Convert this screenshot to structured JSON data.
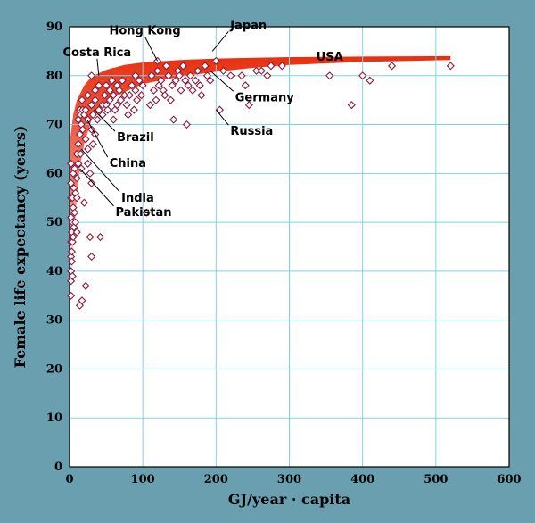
{
  "colors": {
    "frame": "#6a9fb0",
    "plot_bg": "#ffffff",
    "grid": "#7ed3e8",
    "band_top": "#e83010",
    "band_bottom": "#ffffff",
    "marker_edge": "#8b1a3a"
  },
  "chart_data": {
    "type": "scatter",
    "title": "",
    "xlabel": "GJ/year · capita",
    "ylabel": "Female life expectancy (years)",
    "xlim": [
      0,
      600
    ],
    "ylim": [
      0,
      90
    ],
    "xticks": [
      0,
      100,
      200,
      300,
      400,
      500,
      600
    ],
    "yticks": [
      0,
      10,
      20,
      30,
      40,
      50,
      60,
      70,
      80,
      90
    ],
    "grid": true,
    "band": {
      "description": "shaded envelope following the saturating trend",
      "upper_curve": [
        [
          0,
          66
        ],
        [
          5,
          72
        ],
        [
          10,
          75
        ],
        [
          20,
          78
        ],
        [
          30,
          79.8
        ],
        [
          50,
          81.2
        ],
        [
          75,
          82.2
        ],
        [
          100,
          82.7
        ],
        [
          150,
          83.2
        ],
        [
          200,
          83.5
        ],
        [
          300,
          83.8
        ],
        [
          400,
          83.9
        ],
        [
          520,
          84
        ]
      ],
      "lower_curve": [
        [
          0,
          31
        ],
        [
          2,
          35
        ],
        [
          5,
          45
        ],
        [
          10,
          55
        ],
        [
          15,
          62
        ],
        [
          20,
          66
        ],
        [
          30,
          71
        ],
        [
          40,
          73
        ],
        [
          60,
          75.5
        ],
        [
          80,
          77
        ],
        [
          100,
          78.3
        ],
        [
          150,
          79.8
        ],
        [
          200,
          80.8
        ],
        [
          250,
          81.6
        ],
        [
          300,
          82.2
        ],
        [
          400,
          82.8
        ],
        [
          520,
          83.2
        ]
      ]
    },
    "points": [
      [
        2,
        62
      ],
      [
        2,
        58
      ],
      [
        2,
        55
      ],
      [
        2,
        51
      ],
      [
        2,
        46
      ],
      [
        2,
        43
      ],
      [
        2,
        40
      ],
      [
        2,
        38
      ],
      [
        2,
        35
      ],
      [
        3,
        48
      ],
      [
        3,
        44
      ],
      [
        3,
        42
      ],
      [
        4,
        55
      ],
      [
        4,
        50
      ],
      [
        4,
        46
      ],
      [
        4,
        39
      ],
      [
        5,
        60
      ],
      [
        5,
        53
      ],
      [
        5,
        47
      ],
      [
        6,
        57
      ],
      [
        6,
        49
      ],
      [
        7,
        61
      ],
      [
        7,
        52
      ],
      [
        8,
        56
      ],
      [
        8,
        50
      ],
      [
        10,
        64
      ],
      [
        10,
        59
      ],
      [
        10,
        55
      ],
      [
        10,
        48
      ],
      [
        12,
        71
      ],
      [
        12,
        66
      ],
      [
        12,
        62
      ],
      [
        14,
        73
      ],
      [
        14,
        68
      ],
      [
        14,
        33
      ],
      [
        15,
        72
      ],
      [
        15,
        64
      ],
      [
        16,
        70
      ],
      [
        16,
        61
      ],
      [
        17,
        75
      ],
      [
        17,
        34
      ],
      [
        18,
        69
      ],
      [
        18,
        73
      ],
      [
        20,
        54
      ],
      [
        20,
        72
      ],
      [
        22,
        73
      ],
      [
        22,
        37
      ],
      [
        22,
        67
      ],
      [
        25,
        76
      ],
      [
        25,
        71
      ],
      [
        25,
        65
      ],
      [
        28,
        47
      ],
      [
        28,
        60
      ],
      [
        30,
        74
      ],
      [
        30,
        69
      ],
      [
        30,
        43
      ],
      [
        30,
        58
      ],
      [
        32,
        66
      ],
      [
        32,
        72
      ],
      [
        35,
        77
      ],
      [
        35,
        75
      ],
      [
        38,
        71
      ],
      [
        40,
        78
      ],
      [
        40,
        73
      ],
      [
        42,
        47
      ],
      [
        45,
        74
      ],
      [
        45,
        72
      ],
      [
        48,
        76
      ],
      [
        50,
        78
      ],
      [
        50,
        74
      ],
      [
        52,
        73
      ],
      [
        55,
        77
      ],
      [
        55,
        75
      ],
      [
        58,
        79
      ],
      [
        60,
        76
      ],
      [
        62,
        73
      ],
      [
        65,
        78
      ],
      [
        65,
        74
      ],
      [
        68,
        77
      ],
      [
        70,
        75
      ],
      [
        72,
        79
      ],
      [
        75,
        76
      ],
      [
        78,
        74
      ],
      [
        80,
        72
      ],
      [
        82,
        76
      ],
      [
        85,
        78
      ],
      [
        88,
        73
      ],
      [
        90,
        80
      ],
      [
        90,
        77
      ],
      [
        92,
        75
      ],
      [
        95,
        79
      ],
      [
        98,
        76
      ],
      [
        100,
        78
      ],
      [
        105,
        52
      ],
      [
        110,
        74
      ],
      [
        112,
        80
      ],
      [
        115,
        77
      ],
      [
        118,
        75
      ],
      [
        120,
        81
      ],
      [
        122,
        78
      ],
      [
        125,
        79
      ],
      [
        128,
        77
      ],
      [
        130,
        76
      ],
      [
        132,
        82
      ],
      [
        135,
        80
      ],
      [
        138,
        75
      ],
      [
        140,
        78
      ],
      [
        142,
        71
      ],
      [
        145,
        79
      ],
      [
        148,
        81
      ],
      [
        150,
        80
      ],
      [
        152,
        77
      ],
      [
        155,
        82
      ],
      [
        158,
        79
      ],
      [
        160,
        70
      ],
      [
        162,
        78
      ],
      [
        165,
        80
      ],
      [
        168,
        77
      ],
      [
        172,
        79
      ],
      [
        175,
        81
      ],
      [
        178,
        78
      ],
      [
        180,
        76
      ],
      [
        185,
        82
      ],
      [
        188,
        80
      ],
      [
        192,
        79
      ],
      [
        200,
        83
      ],
      [
        205,
        73
      ],
      [
        210,
        81
      ],
      [
        220,
        80
      ],
      [
        235,
        80
      ],
      [
        240,
        78
      ],
      [
        245,
        74
      ],
      [
        255,
        81
      ],
      [
        262,
        81
      ],
      [
        270,
        80
      ],
      [
        275,
        82
      ],
      [
        290,
        82
      ],
      [
        355,
        80
      ],
      [
        385,
        74
      ],
      [
        400,
        80
      ],
      [
        410,
        79
      ],
      [
        440,
        82
      ],
      [
        520,
        82
      ],
      [
        120,
        83
      ],
      [
        30,
        80
      ],
      [
        60,
        71
      ],
      [
        25,
        62
      ],
      [
        35,
        68
      ]
    ],
    "annotations": [
      {
        "label": "Hong Kong",
        "x": 120,
        "y": 83
      },
      {
        "label": "Japan",
        "x": 195,
        "y": 85
      },
      {
        "label": "Costa Rica",
        "x": 40,
        "y": 80
      },
      {
        "label": "USA",
        "x": 355,
        "y": 82
      },
      {
        "label": "Germany",
        "x": 192,
        "y": 81
      },
      {
        "label": "Brazil",
        "x": 33,
        "y": 73
      },
      {
        "label": "Russia",
        "x": 200,
        "y": 73
      },
      {
        "label": "China",
        "x": 24,
        "y": 71
      },
      {
        "label": "India",
        "x": 16,
        "y": 65
      },
      {
        "label": "Pakistan",
        "x": 14,
        "y": 61
      }
    ]
  }
}
